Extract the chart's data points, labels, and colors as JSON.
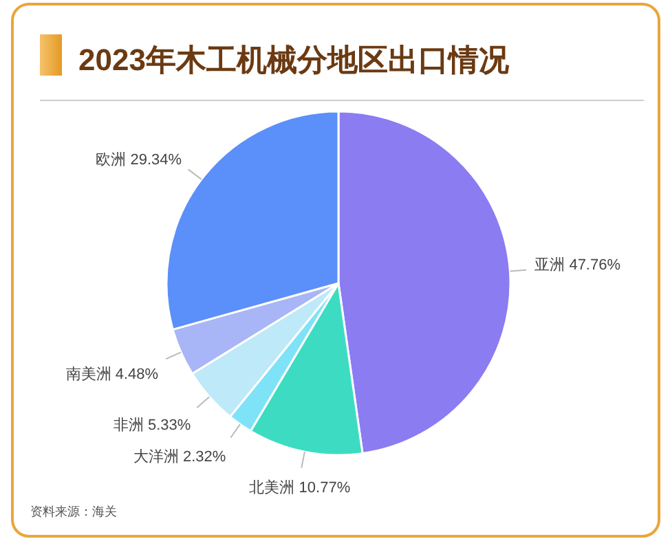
{
  "chart_data": {
    "type": "pie",
    "title": "2023年木工机械分地区出口情况",
    "categories": [
      "亚洲",
      "北美洲",
      "大洋洲",
      "非洲",
      "南美洲",
      "欧洲"
    ],
    "values": [
      47.76,
      10.77,
      2.32,
      5.33,
      4.48,
      29.34
    ],
    "colors": [
      "#8b7cf2",
      "#3ddcc2",
      "#7fe3f7",
      "#bde9f9",
      "#a8b5f6",
      "#5b8ff9"
    ],
    "value_labels": [
      "47.76%",
      "10.77%",
      "2.32%",
      "5.33%",
      "4.48%",
      "29.34%"
    ],
    "annotations": [
      "资料来源：海关"
    ]
  }
}
